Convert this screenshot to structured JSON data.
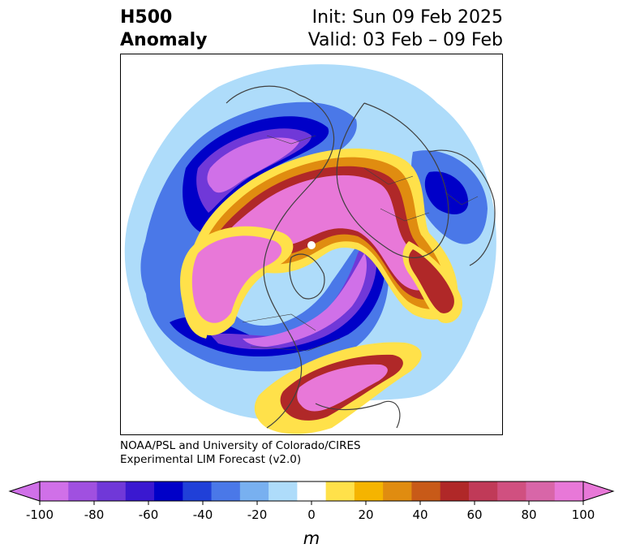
{
  "title": {
    "left_line1": "H500",
    "left_line2": "Anomaly",
    "right_line1": "Init: Sun 09 Feb 2025",
    "right_line2": "Valid: 03 Feb – 09 Feb"
  },
  "credit": {
    "line1": "NOAA/PSL and University of Colorado/CIRES",
    "line2": "Experimental LIM Forecast (v2.0)"
  },
  "colorbar": {
    "unit": "m",
    "ticks": [
      "-100",
      "-80",
      "-60",
      "-40",
      "-20",
      "0",
      "20",
      "40",
      "60",
      "80",
      "100"
    ],
    "levels": [
      -100,
      -90,
      -80,
      -70,
      -60,
      -50,
      -40,
      -30,
      -20,
      -10,
      10,
      20,
      30,
      40,
      50,
      60,
      70,
      80,
      90,
      100
    ],
    "colors": [
      "#d070e8",
      "#a050e0",
      "#7038d8",
      "#3a18d0",
      "#0000c8",
      "#2040d8",
      "#4a78e8",
      "#78b0f0",
      "#aedcfa",
      "#ffffff",
      "#ffe14a",
      "#f5b400",
      "#e08c10",
      "#c85a18",
      "#b02828",
      "#c03a58",
      "#d05080",
      "#d866a8",
      "#e878d8"
    ],
    "extend_min_color": "#d070e8",
    "extend_max_color": "#e878d8"
  },
  "map": {
    "projection": "polar-stereographic-north",
    "anomaly_colors": {
      "neg_light": "#aedcfa",
      "neg_mid": "#4a78e8",
      "neg_deep": "#0000c8",
      "neg_core": "#7038d8",
      "neg_max": "#d070e8",
      "pos_yellow": "#ffe14a",
      "pos_orange": "#e08c10",
      "pos_red": "#b02828",
      "pos_max": "#e878d8"
    },
    "coastline_color": "#404040"
  }
}
